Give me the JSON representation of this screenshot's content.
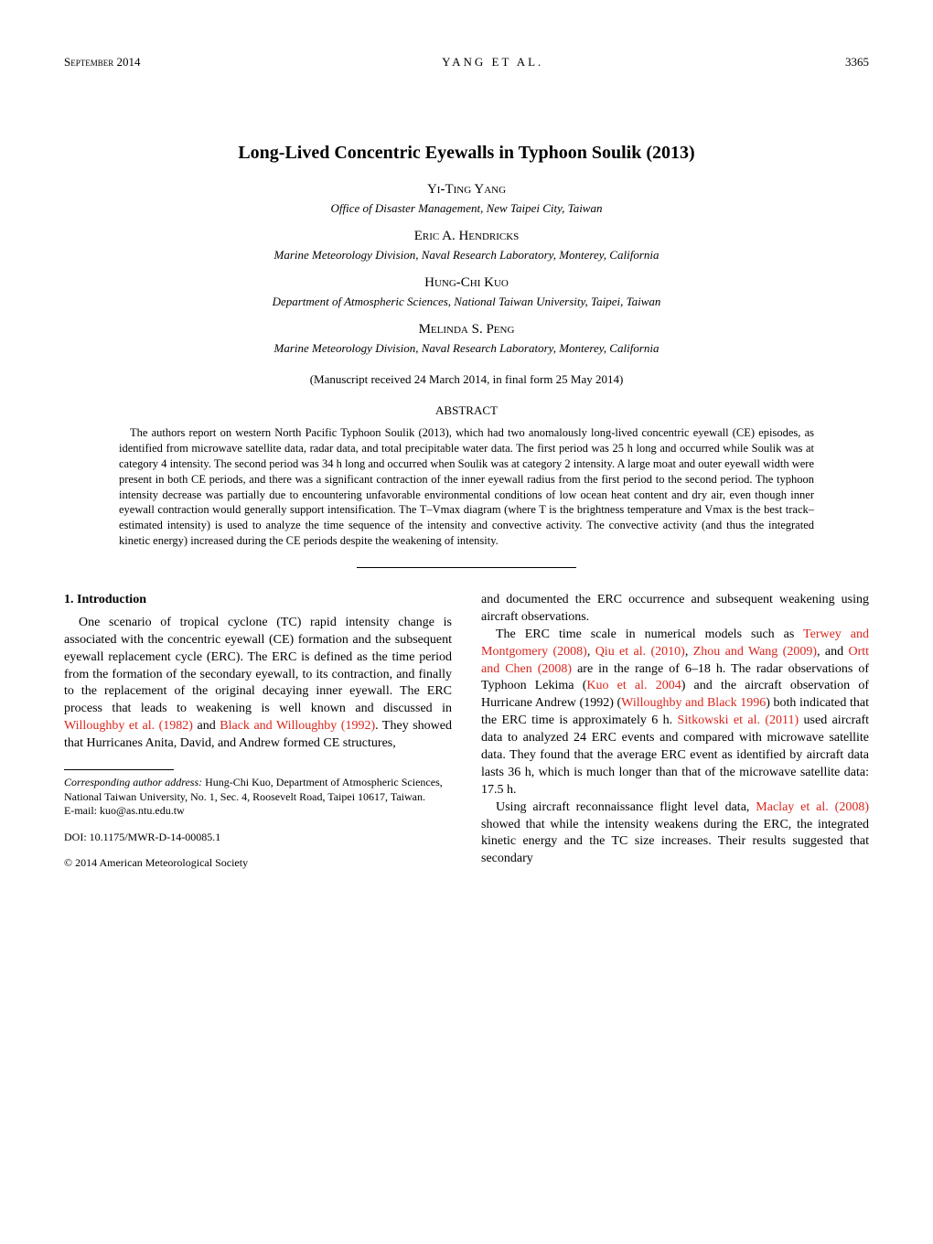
{
  "header": {
    "month": "September 2014",
    "running": "YANG ET AL.",
    "page": "3365"
  },
  "title": "Long-Lived Concentric Eyewalls in Typhoon Soulik (2013)",
  "authors": [
    {
      "name": "Yi-Ting Yang",
      "affiliation": "Office of Disaster Management, New Taipei City, Taiwan"
    },
    {
      "name": "Eric A. Hendricks",
      "affiliation": "Marine Meteorology Division, Naval Research Laboratory, Monterey, California"
    },
    {
      "name": "Hung-Chi Kuo",
      "affiliation": "Department of Atmospheric Sciences, National Taiwan University, Taipei, Taiwan"
    },
    {
      "name": "Melinda S. Peng",
      "affiliation": "Marine Meteorology Division, Naval Research Laboratory, Monterey, California"
    }
  ],
  "manuscript": "(Manuscript received 24 March 2014, in final form 25 May 2014)",
  "abstractHeading": "ABSTRACT",
  "abstractBody": "The authors report on western North Pacific Typhoon Soulik (2013), which had two anomalously long-lived concentric eyewall (CE) episodes, as identified from microwave satellite data, radar data, and total precipitable water data. The first period was 25 h long and occurred while Soulik was at category 4 intensity. The second period was 34 h long and occurred when Soulik was at category 2 intensity. A large moat and outer eyewall width were present in both CE periods, and there was a significant contraction of the inner eyewall radius from the first period to the second period. The typhoon intensity decrease was partially due to encountering unfavorable environmental conditions of low ocean heat content and dry air, even though inner eyewall contraction would generally support intensification. The T–Vmax diagram (where T is the brightness temperature and Vmax is the best track–estimated intensity) is used to analyze the time sequence of the intensity and convective activity. The convective activity (and thus the integrated kinetic energy) increased during the CE periods despite the weakening of intensity.",
  "section1": {
    "heading": "1. Introduction",
    "leftParagraph_pre": "One scenario of tropical cyclone (TC) rapid intensity change is associated with the concentric eyewall (CE) formation and the subsequent eyewall replacement cycle (ERC). The ERC is defined as the time period from the formation of the secondary eyewall, to its contraction, and finally to the replacement of the original decaying inner eyewall. The ERC process that leads to weakening is well known and discussed in ",
    "cite1": "Willoughby et al. (1982)",
    "leftParagraph_mid": " and ",
    "cite2": "Black and Willoughby (1992)",
    "leftParagraph_post": ". They showed that Hurricanes Anita, David, and Andrew formed CE structures, ",
    "rightTop": "and documented the ERC occurrence and subsequent weakening using aircraft observations.",
    "rightP2_a": "The ERC time scale in numerical models such as ",
    "cite3": "Terwey and Montgomery (2008)",
    "rightP2_b": ", ",
    "cite4": "Qiu et al. (2010)",
    "rightP2_c": ", ",
    "cite5": "Zhou and Wang (2009)",
    "rightP2_d": ", and ",
    "cite6": "Ortt and Chen (2008)",
    "rightP2_e": " are in the range of 6–18 h. The radar observations of Typhoon Lekima (",
    "cite7": "Kuo et al. 2004",
    "rightP2_f": ") and the aircraft observation of Hurricane Andrew (1992) (",
    "cite8": "Willoughby and Black 1996",
    "rightP2_g": ") both indicated that the ERC time is approximately 6 h. ",
    "cite9": "Sitkowski et al. (2011)",
    "rightP2_h": " used aircraft data to analyzed 24 ERC events and compared with microwave satellite data. They found that the average ERC event as identified by aircraft data lasts 36 h, which is much longer than that of the microwave satellite data: 17.5 h.",
    "rightP3_a": "Using aircraft reconnaissance flight level data, ",
    "cite10": "Maclay et al. (2008)",
    "rightP3_b": " showed that while the intensity weakens during the ERC, the integrated kinetic energy and the TC size increases. Their results suggested that secondary"
  },
  "footnote": {
    "label": "Corresponding author address:",
    "body": " Hung-Chi Kuo, Department of Atmospheric Sciences, National Taiwan University, No. 1, Sec. 4, Roosevelt Road, Taipei 10617, Taiwan.",
    "email": "E-mail: kuo@as.ntu.edu.tw"
  },
  "doi": "DOI: 10.1175/MWR-D-14-00085.1",
  "copyright": "© 2014 American Meteorological Society",
  "colors": {
    "citation": "#d9261c",
    "text": "#000000",
    "background": "#ffffff"
  }
}
